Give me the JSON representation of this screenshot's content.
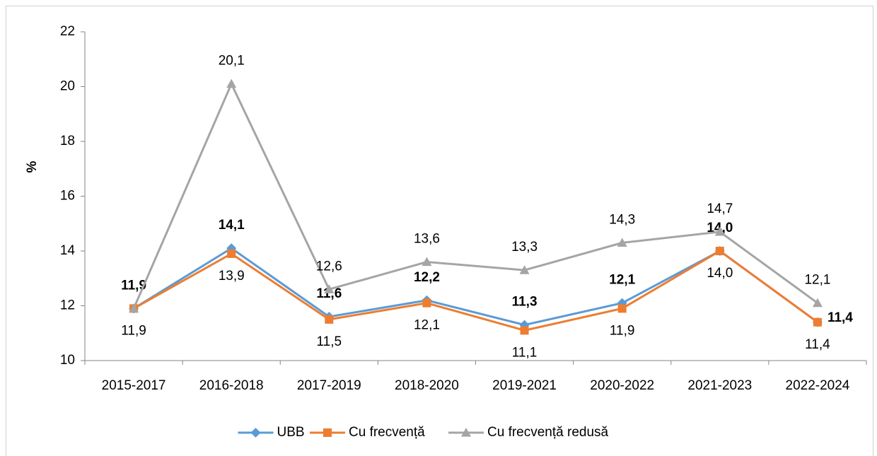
{
  "chart_data": {
    "type": "line",
    "categories": [
      "2015-2017",
      "2016-2018",
      "2017-2019",
      "2018-2020",
      "2019-2021",
      "2020-2022",
      "2021-2023",
      "2022-2024"
    ],
    "y_label": "%",
    "ylim": [
      10,
      22
    ],
    "yticks": [
      10,
      12,
      14,
      16,
      18,
      20,
      22
    ],
    "legend": "bottom",
    "series": [
      {
        "name": "UBB",
        "color": "#5b9bd5",
        "marker": "diamond",
        "values": [
          11.9,
          14.1,
          11.6,
          12.2,
          11.3,
          12.1,
          14.0,
          11.4
        ],
        "value_labels": [
          "11,9",
          "14,1",
          "11,6",
          "12,2",
          "11,3",
          "12,1",
          "14,0",
          "11,4"
        ]
      },
      {
        "name": "Cu frecvență",
        "color": "#ed7d31",
        "marker": "square",
        "values": [
          11.9,
          13.9,
          11.5,
          12.1,
          11.1,
          11.9,
          14.0,
          11.4
        ],
        "value_labels": [
          "11,9",
          "13,9",
          "11,5",
          "12,1",
          "11,1",
          "11,9",
          "14,0",
          "11,4"
        ]
      },
      {
        "name": "Cu frecvență redusă",
        "color": "#a5a5a5",
        "marker": "triangle",
        "values": [
          11.9,
          20.1,
          12.6,
          13.6,
          13.3,
          14.3,
          14.7,
          12.1
        ],
        "value_labels": [
          null,
          "20,1",
          "12,6",
          "13,6",
          "13,3",
          "14,3",
          "14,7",
          "12,1"
        ]
      }
    ]
  }
}
